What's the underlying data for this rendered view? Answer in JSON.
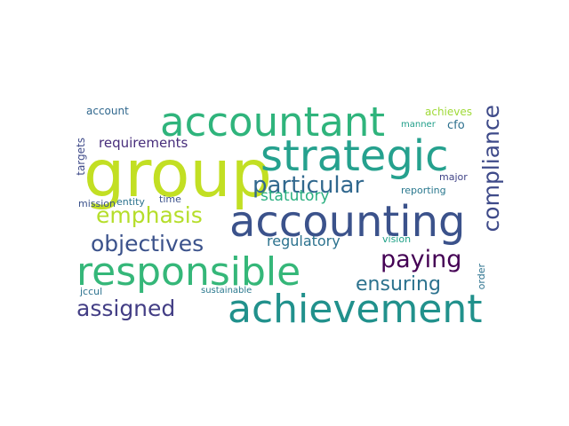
{
  "words": [
    {
      "text": "group",
      "color": "#c2df23"
    },
    {
      "text": "accountant",
      "color": "#2fb47c"
    },
    {
      "text": "strategic",
      "color": "#25a18e"
    },
    {
      "text": "accounting",
      "color": "#3b528b"
    },
    {
      "text": "responsible",
      "color": "#35b779"
    },
    {
      "text": "achievement",
      "color": "#21918c"
    },
    {
      "text": "compliance",
      "color": "#3e4a89"
    },
    {
      "text": "particular",
      "color": "#31688e"
    },
    {
      "text": "emphasis",
      "color": "#b5de2b"
    },
    {
      "text": "objectives",
      "color": "#3b528b"
    },
    {
      "text": "paying",
      "color": "#440154"
    },
    {
      "text": "assigned",
      "color": "#433e85"
    },
    {
      "text": "ensuring",
      "color": "#2c728e"
    },
    {
      "text": "requirements",
      "color": "#472d7b"
    },
    {
      "text": "statutory",
      "color": "#29af7f"
    },
    {
      "text": "regulatory",
      "color": "#2c728e"
    },
    {
      "text": "achieves",
      "color": "#a0da39"
    },
    {
      "text": "account",
      "color": "#31688e"
    },
    {
      "text": "targets",
      "color": "#3e4a89"
    },
    {
      "text": "cfo",
      "color": "#2d708e"
    },
    {
      "text": "manner",
      "color": "#1f9e89"
    },
    {
      "text": "entity",
      "color": "#2c728e"
    },
    {
      "text": "major",
      "color": "#414487"
    },
    {
      "text": "time",
      "color": "#3b528b"
    },
    {
      "text": "mission",
      "color": "#3b528b"
    },
    {
      "text": "reporting",
      "color": "#2a788e"
    },
    {
      "text": "vision",
      "color": "#1fa187"
    },
    {
      "text": "order",
      "color": "#2c728e"
    },
    {
      "text": "jccul",
      "color": "#2c728e"
    },
    {
      "text": "sustainable",
      "color": "#2a788e"
    }
  ]
}
